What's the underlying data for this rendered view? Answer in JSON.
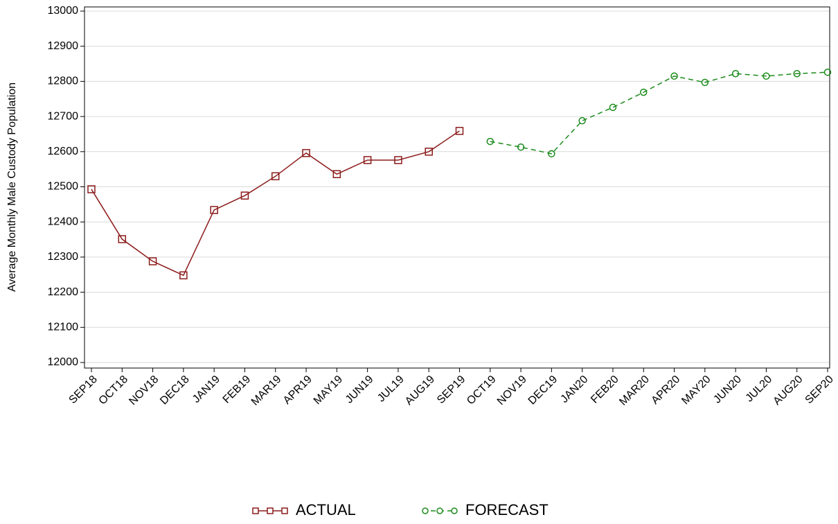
{
  "chart_data": {
    "type": "line",
    "y_label": "Average Monthly Male Custody Population",
    "categories": [
      "SEP18",
      "OCT18",
      "NOV18",
      "DEC18",
      "JAN19",
      "FEB19",
      "MAR19",
      "APR19",
      "MAY19",
      "JUN19",
      "JUL19",
      "AUG19",
      "SEP19",
      "OCT19",
      "NOV19",
      "DEC19",
      "JAN20",
      "FEB20",
      "MAR20",
      "APR20",
      "MAY20",
      "JUN20",
      "JUL20",
      "AUG20",
      "SEP20"
    ],
    "series": [
      {
        "name": "ACTUAL",
        "color": "#8b1a1a",
        "marker": "square",
        "dashed": false,
        "values": [
          12493,
          12351,
          12288,
          12248,
          12434,
          12475,
          12530,
          12596,
          12536,
          12576,
          12576,
          12600,
          12659,
          null,
          null,
          null,
          null,
          null,
          null,
          null,
          null,
          null,
          null,
          null,
          null
        ]
      },
      {
        "name": "FORECAST",
        "color": "#1a8a1a",
        "marker": "circle",
        "dashed": true,
        "values": [
          null,
          null,
          null,
          null,
          null,
          null,
          null,
          null,
          null,
          null,
          null,
          null,
          null,
          12629,
          12613,
          12594,
          12688,
          12726,
          12769,
          12815,
          12797,
          12822,
          12815,
          12822,
          12826
        ]
      }
    ],
    "ylim": [
      12000,
      13000
    ],
    "yticks": [
      12000,
      12100,
      12200,
      12300,
      12400,
      12500,
      12600,
      12700,
      12800,
      12900,
      13000
    ],
    "grid": true,
    "legend": "bottom"
  }
}
